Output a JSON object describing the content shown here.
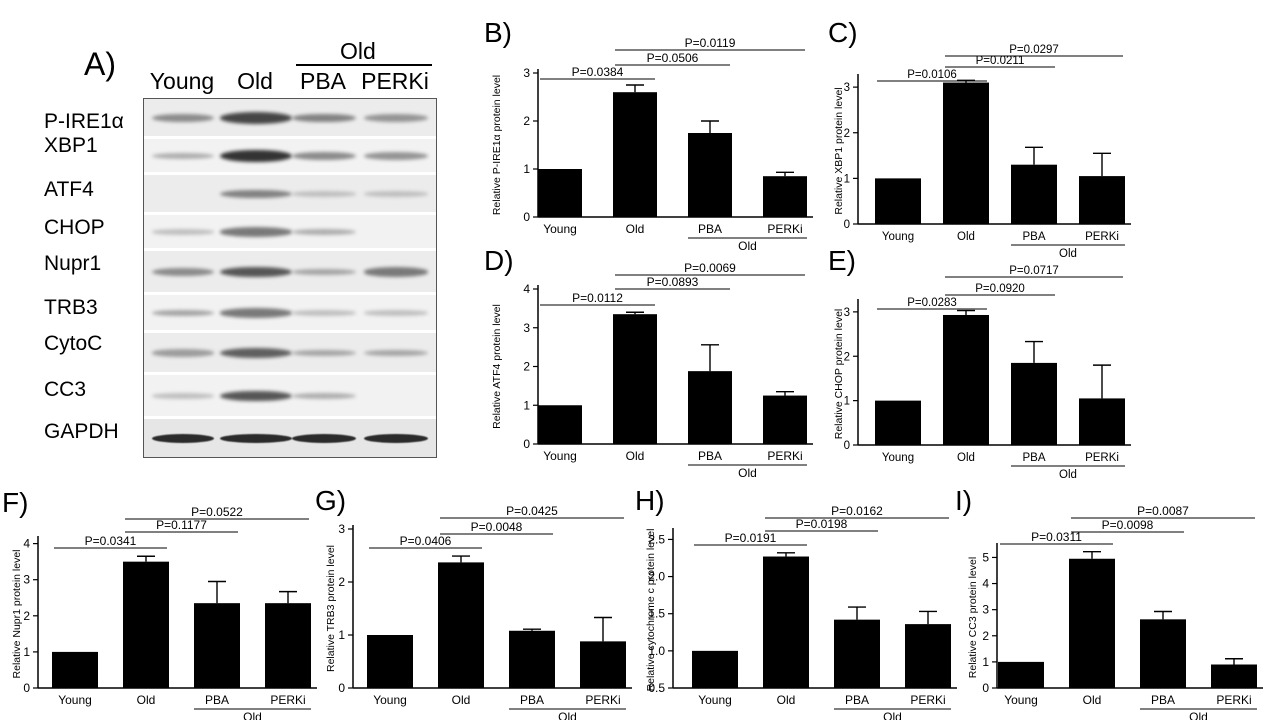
{
  "blot": {
    "panel": "A)",
    "group_label": "Old",
    "columns": [
      "Young",
      "Old",
      "PBA",
      "PERKi"
    ],
    "rows": [
      {
        "label": "P-IRE1α",
        "intensity": [
          0.35,
          0.75,
          0.4,
          0.3
        ]
      },
      {
        "label": "XBP1",
        "intensity": [
          0.15,
          0.85,
          0.35,
          0.3
        ]
      },
      {
        "label": "ATF4",
        "intensity": [
          0.0,
          0.4,
          0.05,
          0.05
        ]
      },
      {
        "label": "CHOP",
        "intensity": [
          0.05,
          0.45,
          0.15,
          0.0
        ]
      },
      {
        "label": "Nupr1",
        "intensity": [
          0.35,
          0.65,
          0.2,
          0.45
        ]
      },
      {
        "label": "TRB3",
        "intensity": [
          0.2,
          0.45,
          0.05,
          0.05
        ]
      },
      {
        "label": "CytoC",
        "intensity": [
          0.25,
          0.6,
          0.2,
          0.2
        ]
      },
      {
        "label": "CC3",
        "intensity": [
          0.05,
          0.65,
          0.15,
          0.0
        ]
      },
      {
        "label": "GAPDH",
        "intensity": [
          0.9,
          0.9,
          0.9,
          0.9
        ]
      }
    ]
  },
  "chart_data": [
    {
      "panel": "B)",
      "type": "bar",
      "categories": [
        "Young",
        "Old",
        "PBA",
        "PERKi"
      ],
      "group_label": "Old",
      "ylabel": "Relative P-IRE1α protein level",
      "ylim": [
        0,
        3
      ],
      "yticks": [
        0,
        1,
        2,
        3
      ],
      "values": [
        1.0,
        2.6,
        1.75,
        0.85
      ],
      "errors": [
        0,
        0.15,
        0.25,
        0.08
      ],
      "comparisons": [
        {
          "from": "Young",
          "to": "Old",
          "label": "P=0.0384"
        },
        {
          "from": "Old",
          "to": "PBA",
          "label": "P=0.0506"
        },
        {
          "from": "Old",
          "to": "PERKi",
          "label": "P=0.0119"
        }
      ]
    },
    {
      "panel": "C)",
      "type": "bar",
      "categories": [
        "Young",
        "Old",
        "PBA",
        "PERKi"
      ],
      "group_label": "Old",
      "ylabel": "Relative XBP1 protein level",
      "ylim": [
        0,
        3.2
      ],
      "yticks": [
        0,
        1,
        2,
        3
      ],
      "values": [
        1.0,
        3.1,
        1.3,
        1.05
      ],
      "errors": [
        0,
        0.05,
        0.38,
        0.5
      ],
      "comparisons": [
        {
          "from": "Young",
          "to": "Old",
          "label": "P=0.0106"
        },
        {
          "from": "Old",
          "to": "PBA",
          "label": "P=0.0211"
        },
        {
          "from": "Old",
          "to": "PERKi",
          "label": "P=0.0297"
        }
      ]
    },
    {
      "panel": "D)",
      "type": "bar",
      "categories": [
        "Young",
        "Old",
        "PBA",
        "PERKi"
      ],
      "group_label": "Old",
      "ylabel": "Relative ATF4 protein level",
      "ylim": [
        0,
        4
      ],
      "yticks": [
        0,
        1,
        2,
        3,
        4
      ],
      "values": [
        1.0,
        3.35,
        1.88,
        1.25
      ],
      "errors": [
        0,
        0.05,
        0.68,
        0.1
      ],
      "comparisons": [
        {
          "from": "Young",
          "to": "Old",
          "label": "P=0.0112"
        },
        {
          "from": "Old",
          "to": "PBA",
          "label": "P=0.0893"
        },
        {
          "from": "Old",
          "to": "PERKi",
          "label": "P=0.0069"
        }
      ]
    },
    {
      "panel": "E)",
      "type": "bar",
      "categories": [
        "Young",
        "Old",
        "PBA",
        "PERKi"
      ],
      "group_label": "Old",
      "ylabel": "Relative CHOP protein level",
      "ylim": [
        0,
        3.2
      ],
      "yticks": [
        0,
        1,
        2,
        3
      ],
      "values": [
        1.0,
        2.93,
        1.85,
        1.05
      ],
      "errors": [
        0,
        0.1,
        0.48,
        0.75
      ],
      "comparisons": [
        {
          "from": "Young",
          "to": "Old",
          "label": "P=0.0283"
        },
        {
          "from": "Old",
          "to": "PBA",
          "label": "P=0.0920"
        },
        {
          "from": "Old",
          "to": "PERKi",
          "label": "P=0.0717"
        }
      ]
    },
    {
      "panel": "F)",
      "type": "bar",
      "categories": [
        "Young",
        "Old",
        "PBA",
        "PERKi"
      ],
      "group_label": "Old",
      "ylabel": "Relative Nupr1 protein level",
      "ylim": [
        0,
        4.1
      ],
      "yticks": [
        0,
        1,
        2,
        3,
        4
      ],
      "values": [
        1.0,
        3.5,
        2.35,
        2.35
      ],
      "errors": [
        0,
        0.15,
        0.6,
        0.32
      ],
      "comparisons": [
        {
          "from": "Young",
          "to": "Old",
          "label": "P=0.0341"
        },
        {
          "from": "Old",
          "to": "PBA",
          "label": "P=0.1177"
        },
        {
          "from": "Old",
          "to": "PERKi",
          "label": "P=0.0522"
        }
      ]
    },
    {
      "panel": "G)",
      "type": "bar",
      "categories": [
        "Young",
        "Old",
        "PBA",
        "PERKi"
      ],
      "group_label": "Old",
      "ylabel": "Relative TRB3 protein level",
      "ylim": [
        0,
        3
      ],
      "yticks": [
        0,
        1,
        2,
        3
      ],
      "values": [
        1.0,
        2.37,
        1.08,
        0.88
      ],
      "errors": [
        0,
        0.12,
        0.03,
        0.45
      ],
      "comparisons": [
        {
          "from": "Young",
          "to": "Old",
          "label": "P=0.0406"
        },
        {
          "from": "Old",
          "to": "PBA",
          "label": "P=0.0048"
        },
        {
          "from": "Old",
          "to": "PERKi",
          "label": "P=0.0425"
        }
      ]
    },
    {
      "panel": "H)",
      "type": "bar",
      "categories": [
        "Young",
        "Old",
        "PBA",
        "PERKi"
      ],
      "group_label": "Old",
      "ylabel": "Relative cytochrome c protein level",
      "ylim": [
        0.5,
        2.6
      ],
      "yticks": [
        0.5,
        1.0,
        1.5,
        2.0,
        2.5
      ],
      "ytick_labels": [
        "0.5",
        "1.0",
        "1.5",
        "2.0",
        "2.5"
      ],
      "values": [
        1.0,
        2.27,
        1.42,
        1.36
      ],
      "errors": [
        0,
        0.05,
        0.17,
        0.17
      ],
      "comparisons": [
        {
          "from": "Young",
          "to": "Old",
          "label": "P=0.0191"
        },
        {
          "from": "Old",
          "to": "PBA",
          "label": "P=0.0198"
        },
        {
          "from": "Old",
          "to": "PERKi",
          "label": "P=0.0162"
        }
      ]
    },
    {
      "panel": "I)",
      "type": "bar",
      "categories": [
        "Young",
        "Old",
        "PBA",
        "PERKi"
      ],
      "group_label": "Old",
      "ylabel": "Relative CC3 protein level",
      "ylim": [
        0,
        5.4
      ],
      "yticks": [
        0,
        1,
        2,
        3,
        4,
        5
      ],
      "values": [
        1.0,
        4.95,
        2.63,
        0.9
      ],
      "errors": [
        0,
        0.27,
        0.3,
        0.22
      ],
      "comparisons": [
        {
          "from": "Young",
          "to": "Old",
          "label": "P=0.0311"
        },
        {
          "from": "Old",
          "to": "PBA",
          "label": "P=0.0098"
        },
        {
          "from": "Old",
          "to": "PERKi",
          "label": "P=0.0087"
        }
      ]
    }
  ]
}
